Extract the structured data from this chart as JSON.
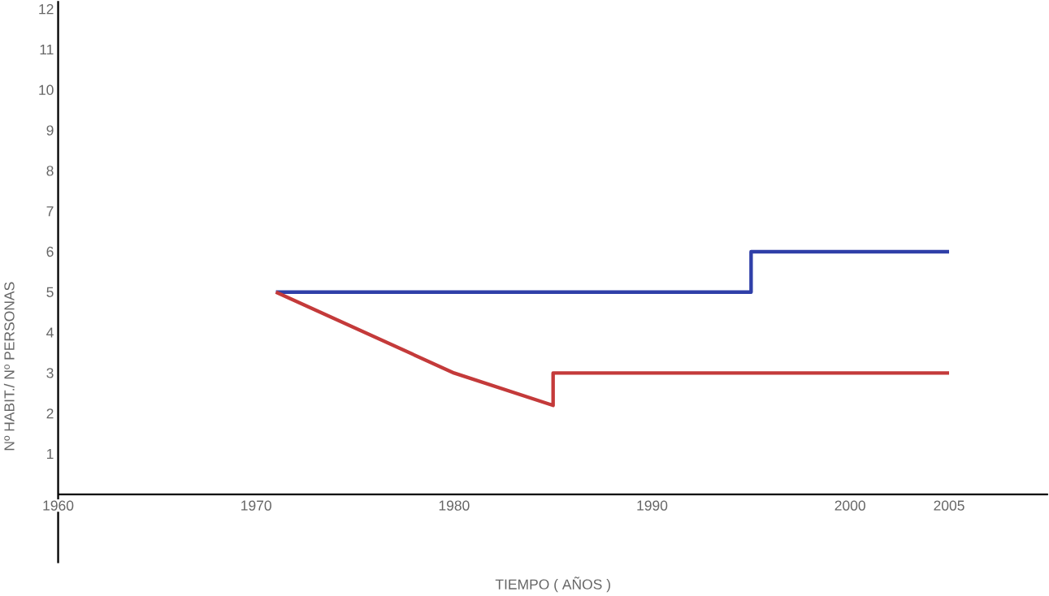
{
  "chart_data": {
    "type": "line",
    "xlabel": "TIEMPO ( AÑOS )",
    "ylabel": "Nº HABIT./ Nº PERSONAS",
    "xlim": [
      1960,
      2010
    ],
    "ylim": [
      -1.7,
      12.2
    ],
    "xticks": [
      1960,
      1970,
      1980,
      1990,
      2000,
      2005
    ],
    "yticks": [
      1,
      2,
      3,
      4,
      5,
      6,
      7,
      8,
      9,
      10,
      11,
      12
    ],
    "marker": "none",
    "line_style": "solid",
    "series": [
      {
        "color": "#2f3fa8",
        "x": [
          1971,
          1995,
          1995,
          2005
        ],
        "values": [
          5,
          5,
          6,
          6
        ]
      },
      {
        "color": "#c43a3a",
        "x": [
          1971,
          1980,
          1985,
          1985,
          2005
        ],
        "values": [
          5,
          3,
          2.2,
          3,
          3
        ]
      }
    ]
  }
}
